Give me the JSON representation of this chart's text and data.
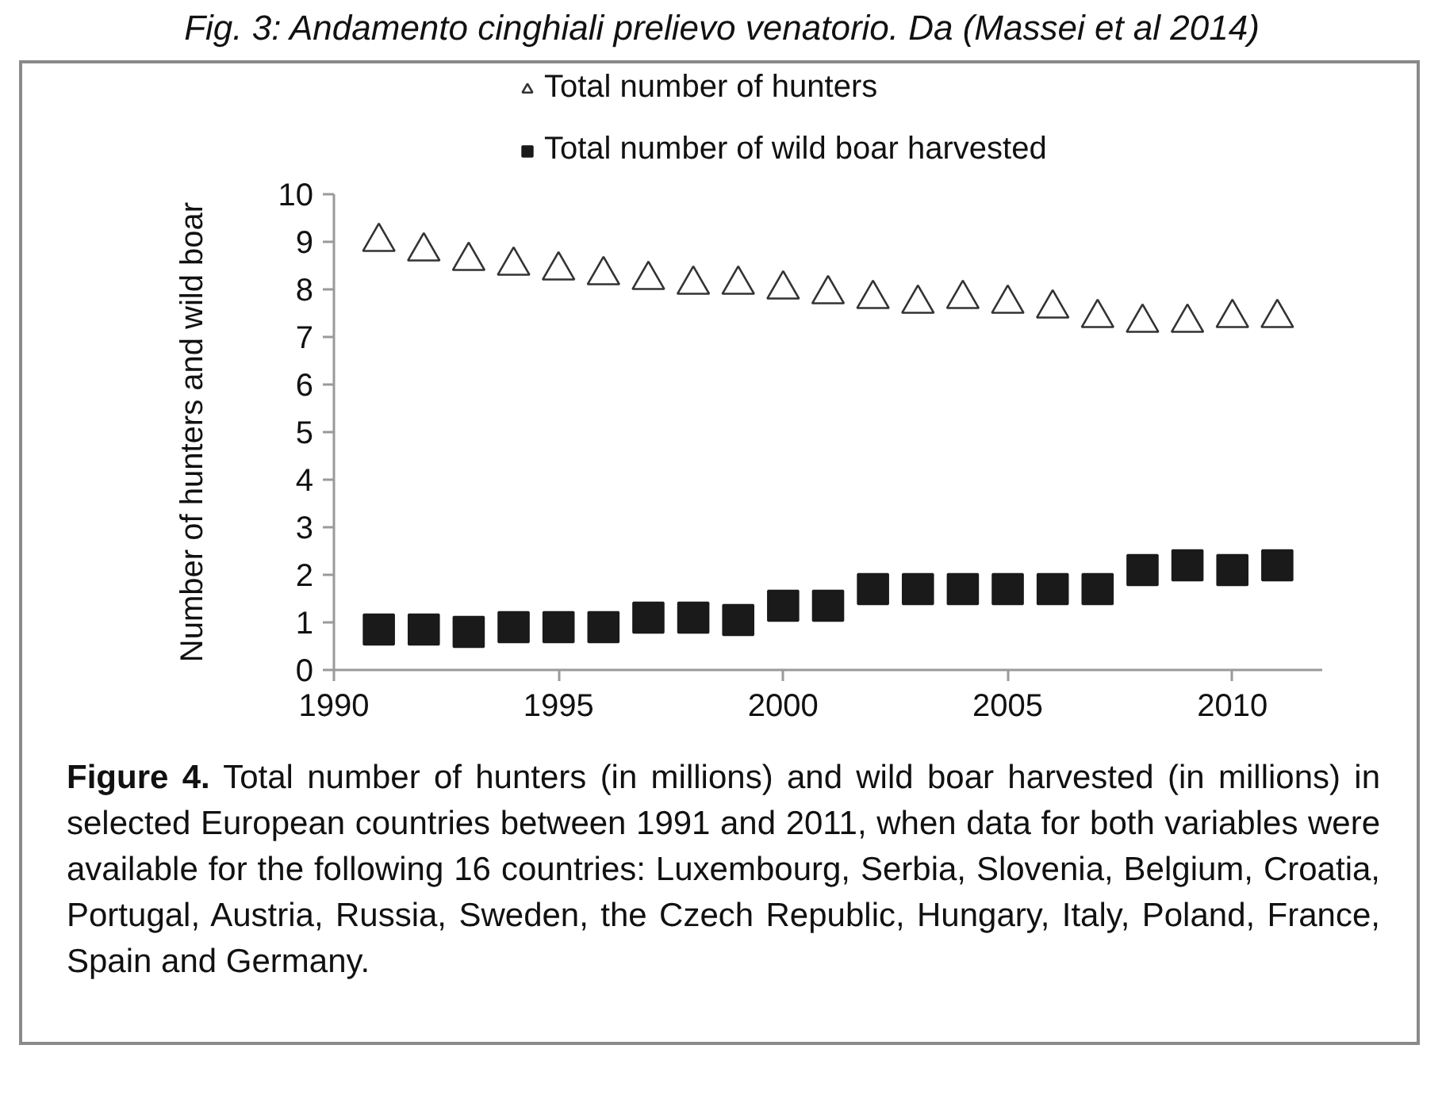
{
  "chart_data": {
    "type": "scatter",
    "title": "Fig. 3: Andamento cinghiali prelievo venatorio. Da (Massei et al 2014)",
    "ylabel": "Number of hunters and wild boar",
    "x": [
      1991,
      1992,
      1993,
      1994,
      1995,
      1996,
      1997,
      1998,
      1999,
      2000,
      2001,
      2002,
      2003,
      2004,
      2005,
      2006,
      2007,
      2008,
      2009,
      2010,
      2011
    ],
    "series": [
      {
        "name": "Total number of hunters",
        "color": "#333333",
        "marker": "triangle",
        "values": [
          9.0,
          8.8,
          8.6,
          8.5,
          8.4,
          8.3,
          8.2,
          8.1,
          8.1,
          8.0,
          7.9,
          7.8,
          7.7,
          7.8,
          7.7,
          7.6,
          7.4,
          7.3,
          7.3,
          7.4,
          7.4
        ]
      },
      {
        "name": "Total number of wild boar harvested",
        "color": "#1a1a1a",
        "marker": "square",
        "values": [
          0.85,
          0.85,
          0.8,
          0.9,
          0.9,
          0.9,
          1.1,
          1.1,
          1.05,
          1.35,
          1.35,
          1.7,
          1.7,
          1.7,
          1.7,
          1.7,
          1.7,
          2.1,
          2.2,
          2.1,
          2.2
        ]
      }
    ],
    "xlim": [
      1990,
      2012
    ],
    "xticks": [
      1990,
      1995,
      2000,
      2005,
      2010
    ],
    "ylim": [
      0,
      10
    ],
    "yticks": [
      0,
      1,
      2,
      3,
      4,
      5,
      6,
      7,
      8,
      9,
      10
    ],
    "legend": "top",
    "annotations": [
      "Figure 4.",
      "Total number of hunters (in millions) and wild boar harvested (in millions) in selected European countries between 1991 and 2011, when data for both variables were available for the following 16 countries: Luxembourg, Serbia, Slovenia, Belgium, Croatia, Portugal, Austria, Russia, Sweden, the Czech Republic, Hungary, Italy, Poland, France, Spain and Germany."
    ]
  }
}
